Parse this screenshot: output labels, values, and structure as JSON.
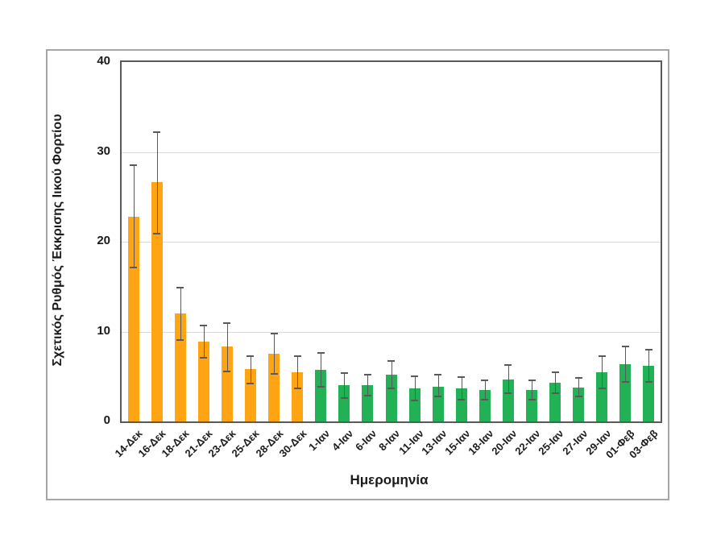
{
  "chart_data": {
    "type": "bar",
    "title": "",
    "xlabel": "Ημερομηνία",
    "ylabel": "Σχετικός Ρυθμός Έκκρισης Ιικού Φορτίου",
    "ylim": [
      0,
      40
    ],
    "yticks": [
      0,
      10,
      20,
      30,
      40
    ],
    "grid": "horizontal",
    "legend": "none",
    "categories": [
      "14-Δεκ",
      "16-Δεκ",
      "18-Δεκ",
      "21-Δεκ",
      "23-Δεκ",
      "25-Δεκ",
      "28-Δεκ",
      "30-Δεκ",
      "1-Ιαν",
      "4-Ιαν",
      "6-Ιαν",
      "8-Ιαν",
      "11-Ιαν",
      "13-Ιαν",
      "15-Ιαν",
      "18-Ιαν",
      "20-Ιαν",
      "22-Ιαν",
      "25-Ιαν",
      "27-Ιαν",
      "29-Ιαν",
      "01-Φεβ",
      "03-Φεβ"
    ],
    "values": [
      22.8,
      26.6,
      12.0,
      8.9,
      8.3,
      5.8,
      7.5,
      5.5,
      5.7,
      4.0,
      4.0,
      5.2,
      3.7,
      3.9,
      3.7,
      3.5,
      4.7,
      3.5,
      4.3,
      3.8,
      5.5,
      6.4,
      6.2
    ],
    "error_low": [
      17.1,
      20.9,
      9.1,
      7.1,
      5.6,
      4.2,
      5.3,
      3.7,
      3.9,
      2.6,
      2.9,
      3.7,
      2.3,
      2.8,
      2.4,
      2.4,
      3.1,
      2.4,
      3.1,
      2.8,
      3.7,
      4.4,
      4.4
    ],
    "error_high": [
      28.5,
      32.2,
      14.9,
      10.7,
      10.9,
      7.3,
      9.8,
      7.3,
      7.6,
      5.4,
      5.2,
      6.7,
      5.0,
      5.2,
      4.9,
      4.6,
      6.3,
      4.6,
      5.5,
      4.8,
      7.3,
      8.3,
      8.0
    ],
    "bar_colors": [
      "#FFA412",
      "#FFA412",
      "#FFA412",
      "#FFA412",
      "#FFA412",
      "#FFA412",
      "#FFA412",
      "#FFA412",
      "#22B154",
      "#22B154",
      "#22B154",
      "#22B154",
      "#22B154",
      "#22B154",
      "#22B154",
      "#22B154",
      "#22B154",
      "#22B154",
      "#22B154",
      "#22B154",
      "#22B154",
      "#22B154",
      "#22B154"
    ],
    "color_legend": {
      "orange_bars": "#FFA412",
      "green_bars": "#22B154",
      "error_bar": "#595959",
      "plot_frame": "#595959",
      "gridline": "#d9d9d9",
      "outer_border": "#a6a6a6"
    }
  }
}
